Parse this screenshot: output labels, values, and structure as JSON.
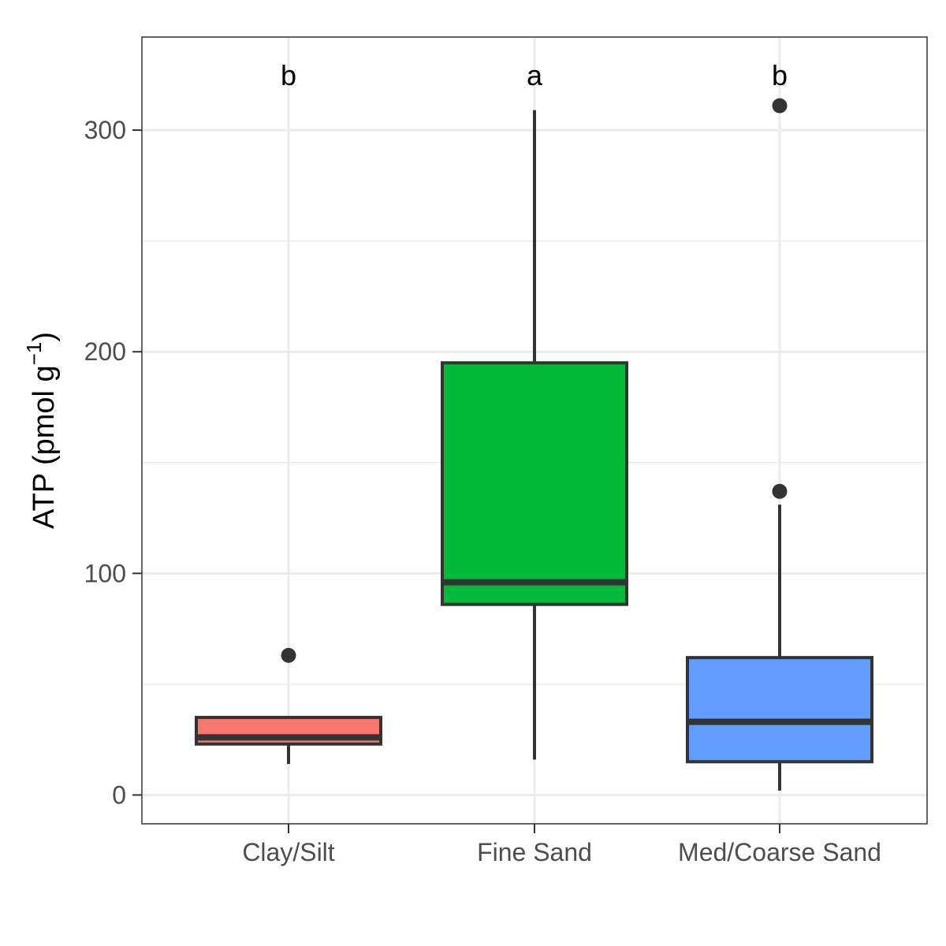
{
  "chart_data": {
    "type": "box",
    "title": "",
    "xlabel": "",
    "ylabel": "ATP (pmol g",
    "ylabel_superscript": "−1",
    "ylabel_close": ")",
    "ylim": [
      -13,
      342
    ],
    "yticks": [
      0,
      100,
      200,
      300
    ],
    "grid": true,
    "legend": "none",
    "categories": [
      "Clay/Silt",
      "Fine Sand",
      "Med/Coarse Sand"
    ],
    "boxes": [
      {
        "category": "Clay/Silt",
        "min": 14,
        "q1": 23,
        "median": 26,
        "q3": 35,
        "max": 35,
        "outliers": [
          63
        ],
        "color": "#F8766D",
        "sig": "b"
      },
      {
        "category": "Fine Sand",
        "min": 16,
        "q1": 86,
        "median": 96,
        "q3": 195,
        "max": 309,
        "outliers": [],
        "color": "#00BA38",
        "sig": "a"
      },
      {
        "category": "Med/Coarse Sand",
        "min": 2,
        "q1": 15,
        "median": 33,
        "q3": 62,
        "max": 131,
        "outliers": [
          137,
          311
        ],
        "color": "#619CFF",
        "sig": "b"
      }
    ]
  }
}
